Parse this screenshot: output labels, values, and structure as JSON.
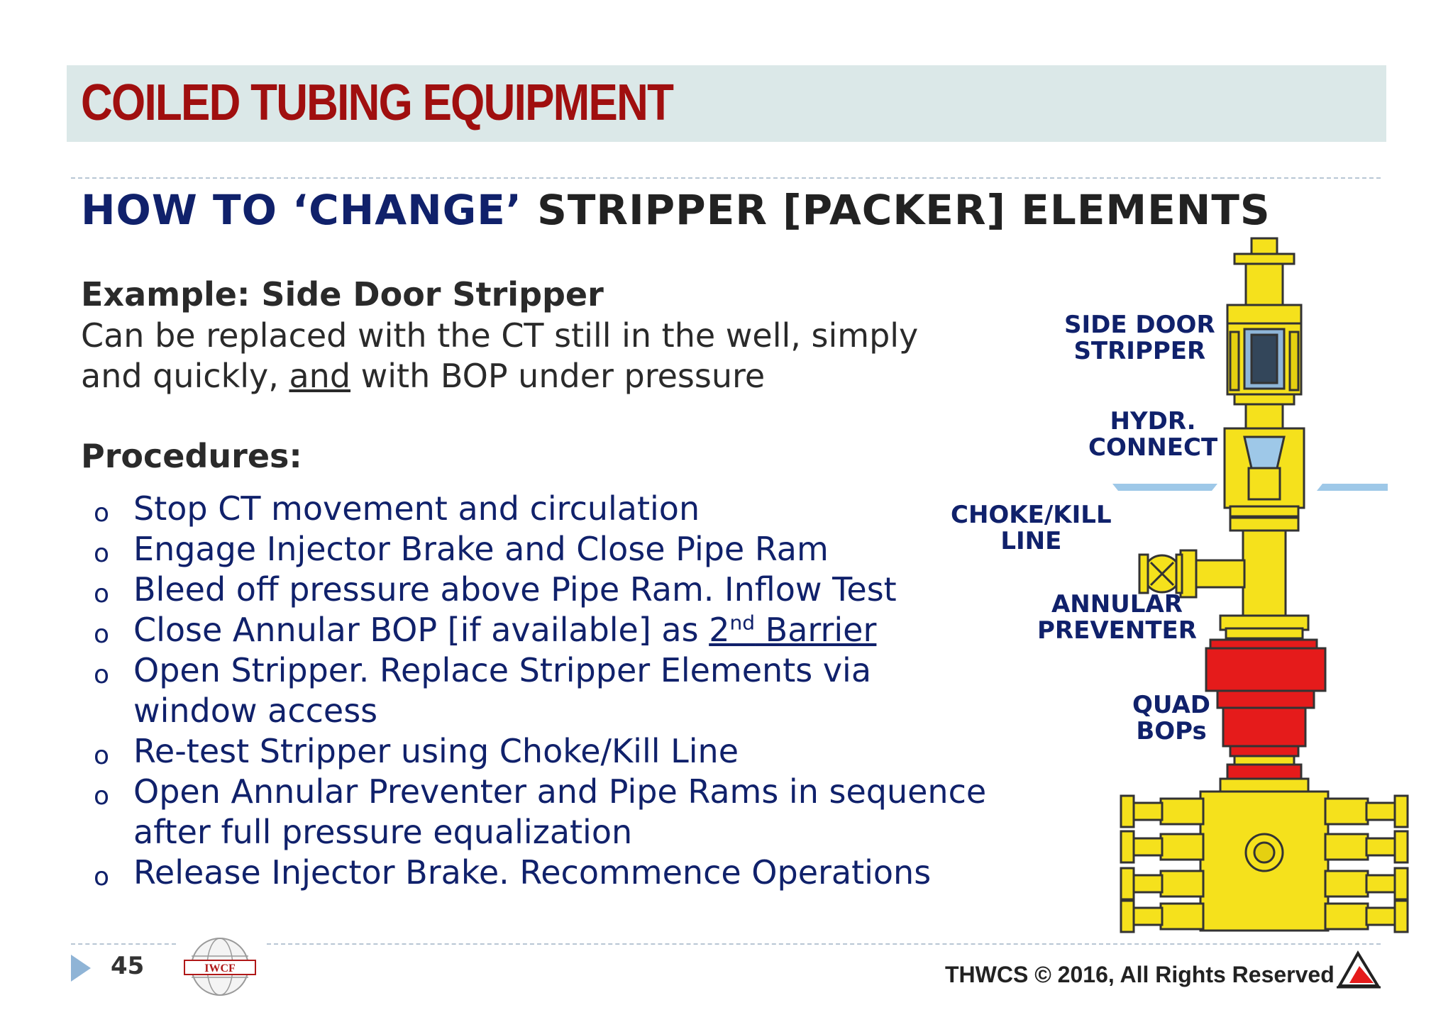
{
  "header": {
    "title": "COILED TUBING EQUIPMENT"
  },
  "subtitle": {
    "part1": "HOW TO ‘CHANGE’",
    "part2": " STRIPPER [PACKER] ELEMENTS"
  },
  "example": {
    "title": "Example: Side Door Stripper",
    "line1": "Can be replaced with the CT still in the well, simply",
    "line2_pre": "and quickly, ",
    "line2_ul": "and",
    "line2_post": " with BOP under pressure"
  },
  "procedures": {
    "title": "Procedures:",
    "bullet": "o",
    "items": [
      "Stop CT movement and circulation",
      "Engage Injector Brake and Close Pipe Ram",
      "Bleed off pressure above Pipe Ram. Inflow Test",
      "Open Stripper. Replace Stripper Elements via",
      "window access",
      "Re-test Stripper using Choke/Kill Line",
      "Open Annular Preventer and Pipe Rams in sequence",
      "after full pressure equalization",
      "Release Injector Brake. Recommence Operations"
    ],
    "item4": {
      "pre": "Close Annular BOP [if available] as ",
      "num": "2",
      "sup": "nd",
      "post": " Barrier"
    }
  },
  "diagram_labels": {
    "side_door_1": "SIDE DOOR",
    "side_door_2": "STRIPPER",
    "hydr_1": "HYDR.",
    "hydr_2": "CONNECT",
    "choke_1": "CHOKE/KILL",
    "choke_2": "LINE",
    "annular_1": "ANNULAR",
    "annular_2": "PREVENTER",
    "quad_1": "QUAD",
    "quad_2": "BOPs"
  },
  "footer": {
    "page_number": "45",
    "logo_text": "IWCF",
    "copyright": "THWCS © 2016, All Rights Reserved"
  },
  "colors": {
    "title_red": "#a00f0f",
    "navy": "#10216b",
    "band": "#dbe8e8",
    "yellow": "#f5e11c",
    "red": "#e51b1b"
  }
}
